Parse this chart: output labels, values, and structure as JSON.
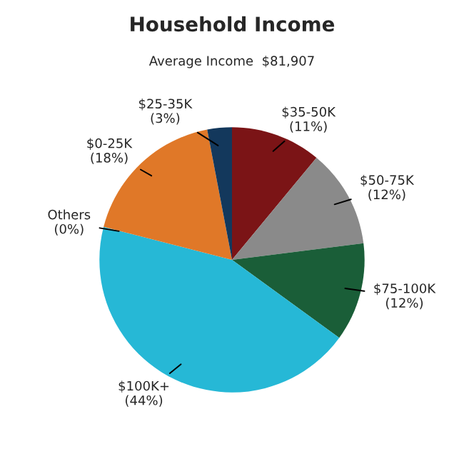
{
  "chart_data": {
    "type": "pie",
    "title": "Household Income",
    "subtitle": "Average Income  $81,907",
    "categories": [
      "$35-50K",
      "$50-75K",
      "$75-100K",
      "$100K+",
      "Others",
      "$0-25K",
      "$25-35K"
    ],
    "values": [
      11,
      12,
      12,
      44,
      0,
      18,
      3
    ],
    "value_labels": [
      "(11%)",
      "(12%)",
      "(12%)",
      "(44%)",
      "(0%)",
      "(18%)",
      "(3%)"
    ],
    "colors": [
      "#7b1416",
      "#8a8a8a",
      "#1a5e38",
      "#26b8d6",
      "#b0b0b0",
      "#e07828",
      "#13385c"
    ],
    "legend": false
  }
}
